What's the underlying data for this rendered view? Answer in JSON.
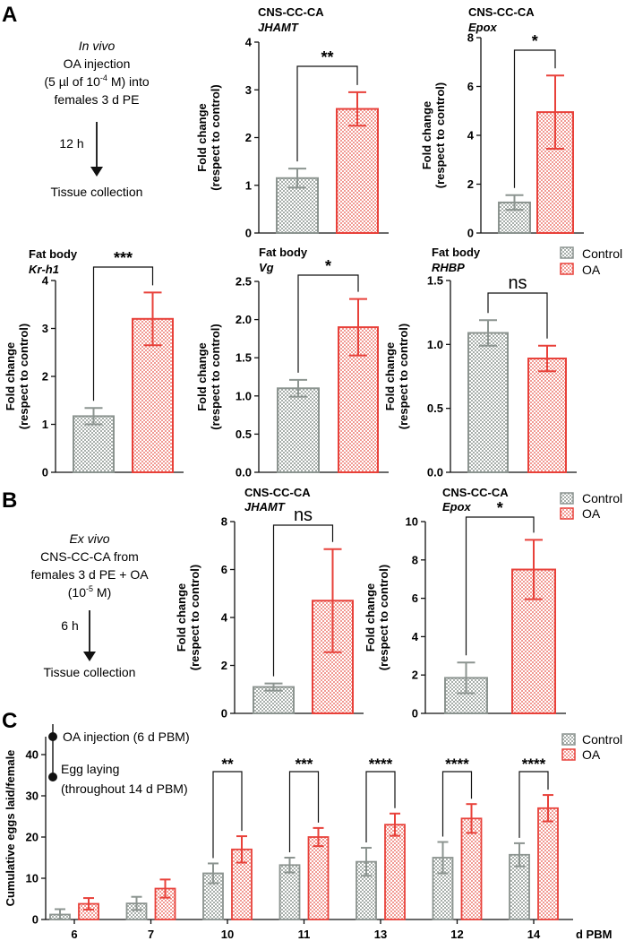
{
  "figure": {
    "panel_labels": [
      "A",
      "B",
      "C"
    ],
    "colors": {
      "control": "#8c9490",
      "control_fill": "#d4d8d5",
      "oa": "#e8413a",
      "oa_fill": "#f6c8c4",
      "oa_c_fill": "#f7d3d0"
    },
    "legend": {
      "control": "Control",
      "oa": "OA"
    }
  },
  "schematic_a": {
    "title": "In vivo",
    "lines": [
      "OA injection",
      "(5 µl of 10",
      "-4",
      " M) into",
      "females 3 d PE"
    ],
    "arrow_label": "12 h",
    "result": "Tissue collection",
    "arrow_icon": "down-arrow-icon"
  },
  "schematic_b": {
    "title": "Ex vivo",
    "lines": [
      "CNS-CC-CA from",
      "females 3 d PE + OA",
      "(10",
      "-5",
      " M)"
    ],
    "arrow_label": "6 h",
    "result": "Tissue collection",
    "arrow_icon": "down-arrow-icon"
  },
  "schematic_c": {
    "steps": [
      "OA injection (6 d PBM)",
      "Egg laying",
      "(throughout 14 d PBM)"
    ]
  },
  "chart_data": [
    {
      "id": "a1",
      "type": "bar",
      "panel": "A",
      "title": "CNS-CC-CA",
      "gene": "JHAMT",
      "ylabel": "Fold change",
      "ylabel2": "(respect to control)",
      "ylim": [
        0,
        4
      ],
      "yticks": [
        "0",
        "1",
        "2",
        "3",
        "4"
      ],
      "ytick_values": [
        0,
        1,
        2,
        3,
        4
      ],
      "categories": [
        "Control",
        "OA"
      ],
      "values": [
        1.15,
        2.6
      ],
      "errors": [
        0.2,
        0.35
      ],
      "significance": "**"
    },
    {
      "id": "a2",
      "type": "bar",
      "panel": "A",
      "title": "CNS-CC-CA",
      "gene": "Epox",
      "ylabel": "Fold change",
      "ylabel2": "(respect to control)",
      "ylim": [
        0,
        8
      ],
      "yticks": [
        "0",
        "2",
        "4",
        "6",
        "8"
      ],
      "ytick_values": [
        0,
        2,
        4,
        6,
        8
      ],
      "categories": [
        "Control",
        "OA"
      ],
      "values": [
        1.25,
        4.95
      ],
      "errors": [
        0.3,
        1.5
      ],
      "significance": "*"
    },
    {
      "id": "a3",
      "type": "bar",
      "panel": "A",
      "title": "Fat body",
      "gene": "Kr-h1",
      "ylabel": "Fold change",
      "ylabel2": "(respect to control)",
      "ylim": [
        0,
        4
      ],
      "yticks": [
        "0",
        "1",
        "2",
        "3",
        "4"
      ],
      "ytick_values": [
        0,
        1,
        2,
        3,
        4
      ],
      "categories": [
        "Control",
        "OA"
      ],
      "values": [
        1.17,
        3.2
      ],
      "errors": [
        0.17,
        0.55
      ],
      "significance": "***"
    },
    {
      "id": "a4",
      "type": "bar",
      "panel": "A",
      "title": "Fat body",
      "gene": "Vg",
      "ylabel": "Fold change",
      "ylabel2": "(respect to control)",
      "ylim": [
        0,
        2.5
      ],
      "yticks": [
        "0.0",
        "0.5",
        "1.0",
        "1.5",
        "2.0",
        "2.5"
      ],
      "ytick_values": [
        0,
        0.5,
        1,
        1.5,
        2,
        2.5
      ],
      "categories": [
        "Control",
        "OA"
      ],
      "values": [
        1.1,
        1.9
      ],
      "errors": [
        0.11,
        0.37
      ],
      "significance": "*"
    },
    {
      "id": "a5",
      "type": "bar",
      "panel": "A",
      "title": "Fat body",
      "gene": "RHBP",
      "ylabel": "Fold change",
      "ylabel2": "(respect to control)",
      "ylim": [
        0,
        1.5
      ],
      "yticks": [
        "0.0",
        "0.5",
        "1.0",
        "1.5"
      ],
      "ytick_values": [
        0,
        0.5,
        1,
        1.5
      ],
      "categories": [
        "Control",
        "OA"
      ],
      "values": [
        1.09,
        0.89
      ],
      "errors": [
        0.1,
        0.1
      ],
      "significance": "ns"
    },
    {
      "id": "b1",
      "type": "bar",
      "panel": "B",
      "title": "CNS-CC-CA",
      "gene": "JHAMT",
      "ylabel": "Fold change",
      "ylabel2": "(respect to control)",
      "ylim": [
        0,
        8
      ],
      "yticks": [
        "0",
        "2",
        "4",
        "6",
        "8"
      ],
      "ytick_values": [
        0,
        2,
        4,
        6,
        8
      ],
      "categories": [
        "Control",
        "OA"
      ],
      "values": [
        1.1,
        4.7
      ],
      "errors": [
        0.15,
        2.15
      ],
      "significance": "ns"
    },
    {
      "id": "b2",
      "type": "bar",
      "panel": "B",
      "title": "CNS-CC-CA",
      "gene": "Epox",
      "ylabel": "Fold change",
      "ylabel2": "(respect to control)",
      "ylim": [
        0,
        10
      ],
      "yticks": [
        "0",
        "2",
        "4",
        "6",
        "8",
        "10"
      ],
      "ytick_values": [
        0,
        2,
        4,
        6,
        8,
        10
      ],
      "categories": [
        "Control",
        "OA"
      ],
      "values": [
        1.85,
        7.5
      ],
      "errors": [
        0.8,
        1.55
      ],
      "significance": "*"
    },
    {
      "id": "c",
      "type": "bar",
      "panel": "C",
      "ylabel": "Cumulative eggs laid/female",
      "xlabel": "d PBM",
      "ylim": [
        0,
        40
      ],
      "yticks": [
        "0",
        "10",
        "20",
        "30",
        "40"
      ],
      "ytick_values": [
        0,
        10,
        20,
        30,
        40
      ],
      "categories": [
        "6",
        "7",
        "10",
        "11",
        "13",
        "12",
        "14"
      ],
      "series": [
        {
          "name": "Control",
          "values": [
            1.2,
            3.9,
            11.2,
            13.2,
            14.0,
            15.0,
            15.7
          ],
          "errors": [
            1.3,
            1.6,
            2.4,
            1.8,
            3.4,
            3.8,
            2.8
          ]
        },
        {
          "name": "OA",
          "values": [
            3.8,
            7.5,
            17.0,
            20.0,
            23.0,
            24.5,
            27.0
          ],
          "errors": [
            1.4,
            2.2,
            3.2,
            2.2,
            2.7,
            3.5,
            3.2
          ]
        }
      ],
      "significance": [
        "",
        "",
        "**",
        "***",
        "****",
        "****",
        "****"
      ]
    }
  ]
}
